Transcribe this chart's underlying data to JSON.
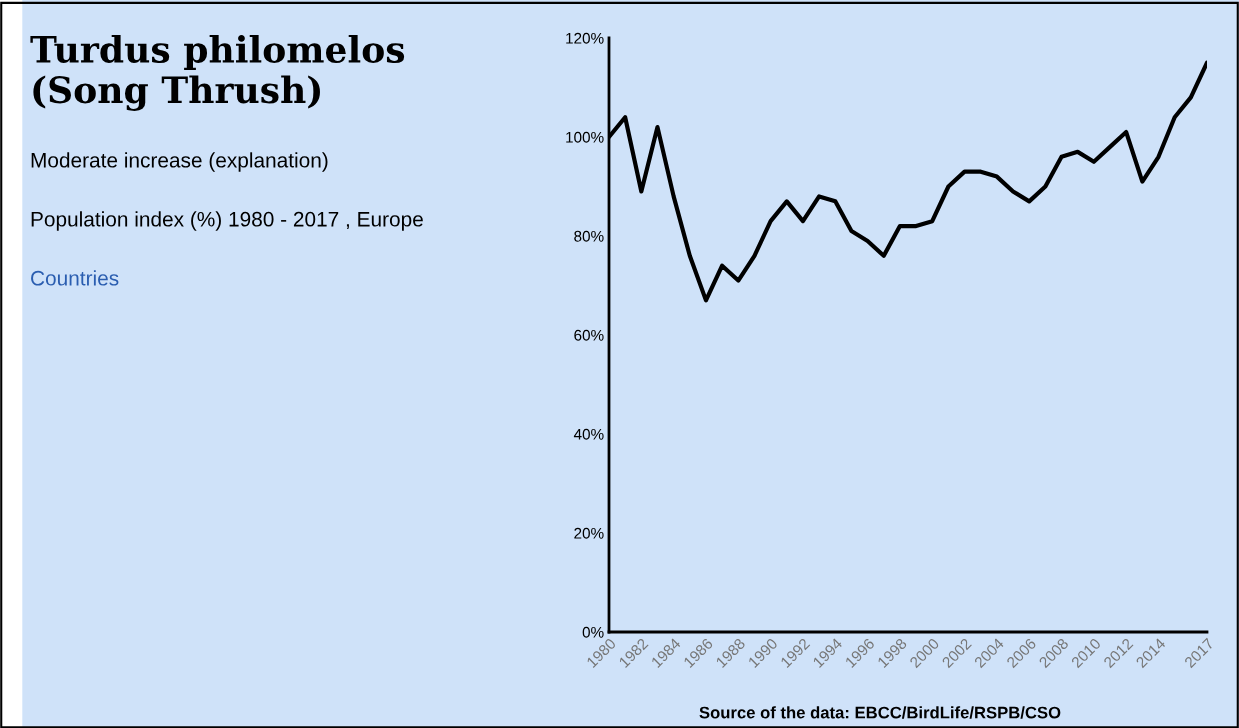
{
  "chart_data": {
    "type": "line",
    "title": "Turdus philomelos\n(Song Thrush)",
    "subtitle": "Moderate increase (explanation)",
    "annotations": [
      "Population index (%) 1980 - 2017 , Europe",
      "Countries",
      "Source of the data: EBCC/BirdLife/RSPB/CSO"
    ],
    "x": [
      1980,
      1981,
      1982,
      1983,
      1984,
      1985,
      1986,
      1987,
      1988,
      1989,
      1990,
      1991,
      1992,
      1993,
      1994,
      1995,
      1996,
      1997,
      1998,
      1999,
      2000,
      2001,
      2002,
      2003,
      2004,
      2005,
      2006,
      2007,
      2008,
      2009,
      2010,
      2011,
      2012,
      2013,
      2014,
      2015,
      2016,
      2017
    ],
    "series": [
      {
        "color": "#000000",
        "values": [
          100,
          104,
          89,
          102,
          88,
          76,
          67,
          74,
          71,
          76,
          83,
          87,
          83,
          88,
          87,
          81,
          79,
          76,
          82,
          82,
          83,
          90,
          93,
          93,
          92,
          89,
          87,
          90,
          96,
          97,
          95,
          98,
          101,
          91,
          96,
          104,
          108,
          115
        ]
      }
    ],
    "xlim": [
      1980,
      2017
    ],
    "xticks": [
      1980,
      1982,
      1984,
      1986,
      1988,
      1990,
      1992,
      1994,
      1996,
      1998,
      2000,
      2002,
      2004,
      2006,
      2008,
      2010,
      2012,
      2014,
      2017
    ],
    "ylim": [
      0,
      120
    ],
    "yticks": [
      {
        "value": 0,
        "label": "0%"
      },
      {
        "value": 20,
        "label": "20%"
      },
      {
        "value": 40,
        "label": "40%"
      },
      {
        "value": 60,
        "label": "60%"
      },
      {
        "value": 80,
        "label": "80%"
      },
      {
        "value": 100,
        "label": "100%"
      },
      {
        "value": 120,
        "label": "120%"
      }
    ],
    "grid": false,
    "legend": false,
    "marker": "none",
    "line_style": "solid"
  }
}
